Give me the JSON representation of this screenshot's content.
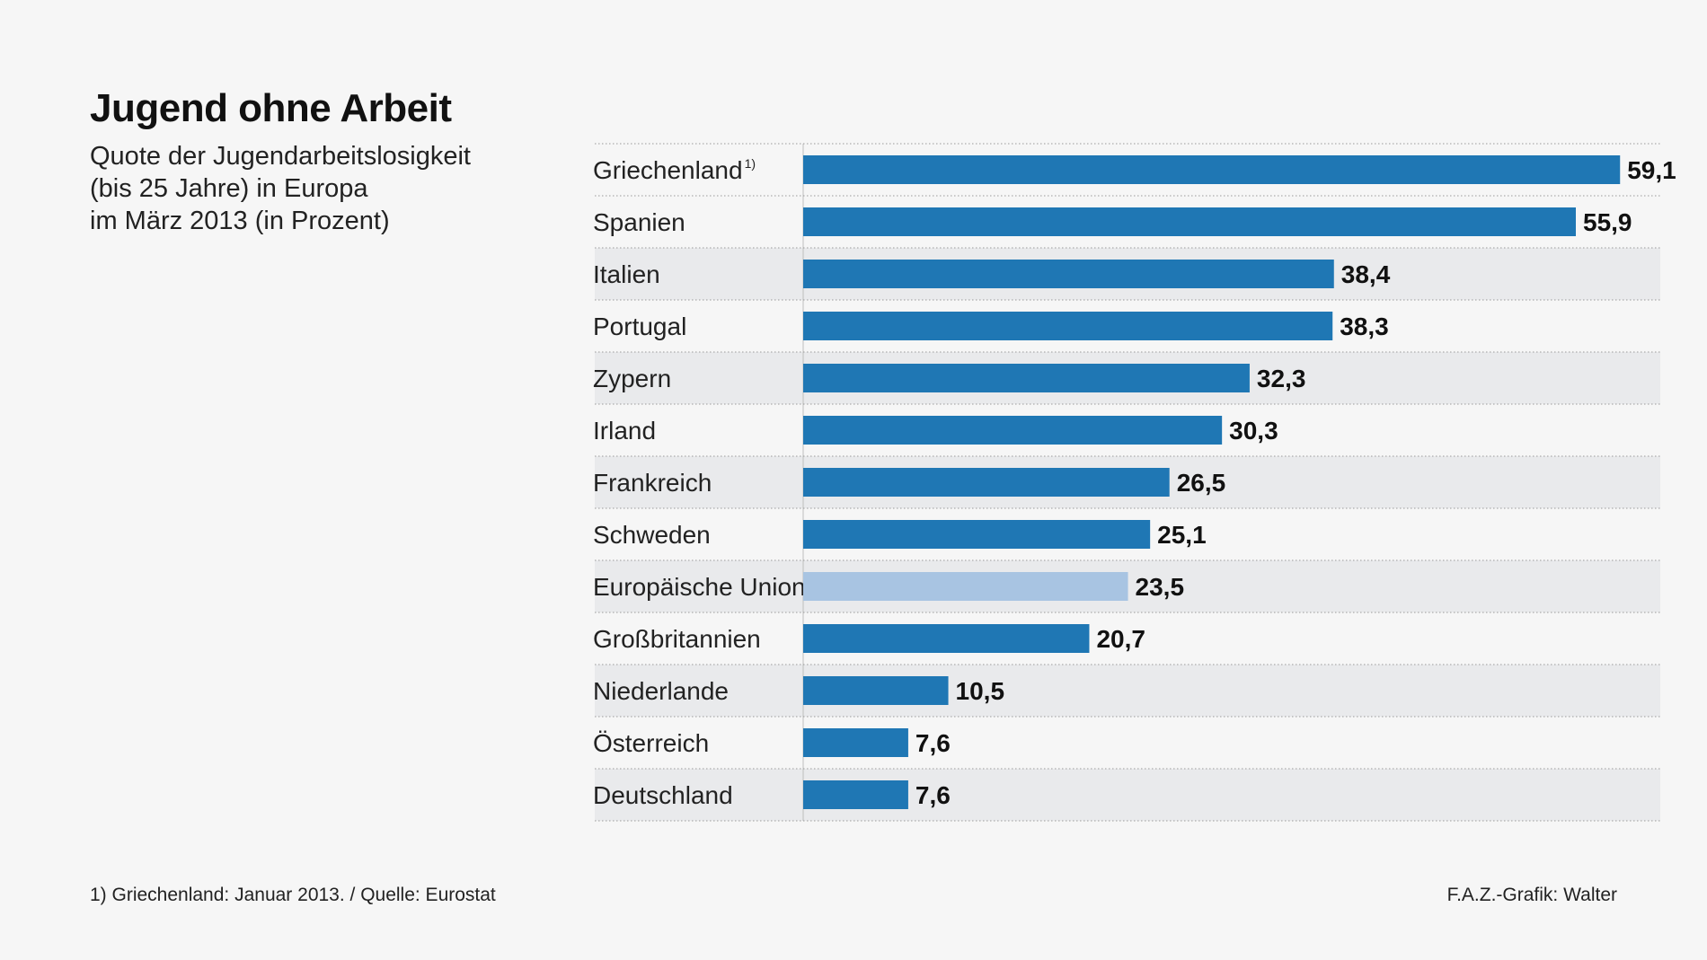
{
  "header": {
    "title": "Jugend ohne Arbeit",
    "subtitle_lines": [
      "Quote der Jugendarbeitslosigkeit",
      "(bis 25 Jahre) in Europa",
      "im März 2013 (in Prozent)"
    ]
  },
  "chart_data": {
    "type": "bar",
    "orientation": "horizontal",
    "title": "Jugend ohne Arbeit",
    "subtitle": "Quote der Jugendarbeitslosigkeit (bis 25 Jahre) in Europa im März 2013 (in Prozent)",
    "xlabel": "",
    "ylabel": "",
    "xlim": [
      0,
      65
    ],
    "grid": false,
    "categories": [
      "Griechenland",
      "Spanien",
      "Italien",
      "Portugal",
      "Zypern",
      "Irland",
      "Frankreich",
      "Schweden",
      "Europäische Union",
      "Großbritannien",
      "Niederlande",
      "Österreich",
      "Deutschland"
    ],
    "category_footnotes": [
      "1)",
      "",
      "",
      "",
      "",
      "",
      "",
      "",
      "",
      "",
      "",
      "",
      ""
    ],
    "values": [
      59.1,
      55.9,
      38.4,
      38.3,
      32.3,
      30.3,
      26.5,
      25.1,
      23.5,
      20.7,
      10.5,
      7.6,
      7.6
    ],
    "value_labels": [
      "59,1",
      "55,9",
      "38,4",
      "38,3",
      "32,3",
      "30,3",
      "26,5",
      "25,1",
      "23,5",
      "20,7",
      "10,5",
      "7,6",
      "7,6"
    ],
    "highlight": [
      false,
      false,
      false,
      false,
      false,
      false,
      false,
      false,
      true,
      false,
      false,
      false,
      false
    ],
    "colors": {
      "bar": "#1f77b4",
      "bar_highlight": "#a8c4e2",
      "row_shade": "#e9eaec",
      "separator": "#9a9a9a",
      "text": "#222222"
    }
  },
  "footer": {
    "footnote": "1) Griechenland: Januar 2013. / Quelle: Eurostat",
    "credit": "F.A.Z.-Grafik: Walter"
  }
}
